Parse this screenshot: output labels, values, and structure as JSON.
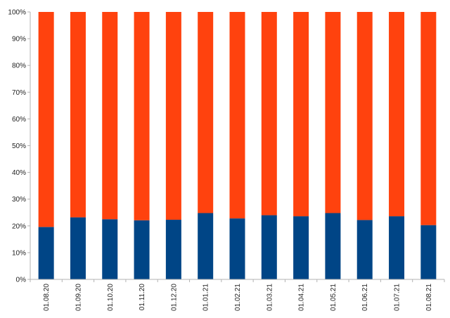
{
  "chart_data": {
    "type": "bar",
    "stacked": true,
    "percent_stacked": true,
    "title": "",
    "xlabel": "",
    "ylabel": "",
    "ylim": [
      0,
      100
    ],
    "yticks": [
      "0%",
      "10%",
      "20%",
      "30%",
      "40%",
      "50%",
      "60%",
      "70%",
      "80%",
      "90%",
      "100%"
    ],
    "grid": false,
    "legend": "none",
    "categories": [
      "01.08.20",
      "01.09.20",
      "01.10.20",
      "01.11.20",
      "01.12.20",
      "01.01.21",
      "01.02.21",
      "01.03.21",
      "01.04.21",
      "01.05.21",
      "01.06.21",
      "01.07.21",
      "01.08.21"
    ],
    "series": [
      {
        "color": "#004586",
        "values": [
          19.6,
          23.2,
          22.5,
          22.1,
          22.3,
          24.8,
          22.8,
          24.0,
          23.6,
          24.8,
          22.2,
          23.6,
          20.3
        ]
      },
      {
        "color": "#ff420e",
        "values": [
          80.4,
          76.8,
          77.5,
          77.9,
          77.7,
          75.2,
          77.2,
          76.0,
          76.4,
          75.2,
          77.8,
          76.4,
          79.7
        ]
      }
    ]
  }
}
